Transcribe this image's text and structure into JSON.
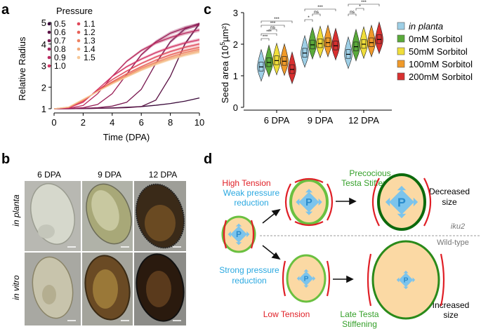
{
  "panels": {
    "a": "a",
    "b": "b",
    "c": "c",
    "d": "d"
  },
  "chart_data": [
    {
      "id": "a",
      "type": "line",
      "title": "",
      "xlabel": "Time (DPA)",
      "ylabel": "Relative Radius",
      "xlim": [
        0,
        10
      ],
      "ylim": [
        1,
        5
      ],
      "xticks": [
        0,
        2,
        4,
        6,
        8,
        10
      ],
      "yticks": [
        1,
        2,
        3,
        4,
        5
      ],
      "legend_title": "Pressure",
      "series": [
        {
          "name": "0.5",
          "color": "#3a0a3a",
          "x": [
            0,
            1,
            2,
            3,
            4,
            5,
            6,
            7,
            8,
            9,
            10
          ],
          "y": [
            1,
            1,
            1.01,
            1.02,
            1.04,
            1.07,
            1.1,
            1.16,
            1.24,
            1.35,
            1.5
          ]
        },
        {
          "name": "0.6",
          "color": "#5a1244",
          "x": [
            0,
            1,
            2,
            3,
            4,
            5,
            6,
            7,
            8,
            9,
            10
          ],
          "y": [
            1,
            1,
            1.01,
            1.02,
            1.03,
            1.05,
            1.1,
            1.4,
            2.5,
            4.0,
            4.95
          ]
        },
        {
          "name": "0.7",
          "color": "#7a1a52",
          "x": [
            0,
            1,
            2,
            3,
            4,
            5,
            6,
            7,
            8,
            9,
            10
          ],
          "y": [
            1,
            1,
            1.02,
            1.05,
            1.12,
            1.3,
            1.9,
            3.1,
            4.1,
            4.7,
            4.95
          ]
        },
        {
          "name": "0.8",
          "color": "#9a2058",
          "x": [
            0,
            1,
            2,
            3,
            4,
            5,
            6,
            7,
            8,
            9,
            10
          ],
          "y": [
            1,
            1.01,
            1.05,
            1.2,
            1.7,
            2.6,
            3.5,
            4.1,
            4.5,
            4.75,
            4.9
          ]
        },
        {
          "name": "0.9",
          "color": "#b82a5e",
          "x": [
            0,
            1,
            2,
            3,
            4,
            5,
            6,
            7,
            8,
            9,
            10
          ],
          "y": [
            1,
            1.02,
            1.15,
            1.7,
            2.5,
            3.2,
            3.7,
            4.05,
            4.3,
            4.5,
            4.65
          ]
        },
        {
          "name": "1.0",
          "color": "#d23464",
          "x": [
            0,
            1,
            2,
            3,
            4,
            5,
            6,
            7,
            8,
            9,
            10
          ],
          "y": [
            1,
            1.04,
            1.3,
            1.9,
            2.5,
            2.95,
            3.3,
            3.6,
            3.85,
            4.05,
            4.2
          ]
        },
        {
          "name": "1.1",
          "color": "#e0485a",
          "x": [
            0,
            1,
            2,
            3,
            4,
            5,
            6,
            7,
            8,
            9,
            10
          ],
          "y": [
            1,
            1.05,
            1.35,
            1.85,
            2.35,
            2.75,
            3.1,
            3.4,
            3.65,
            3.85,
            4.0
          ]
        },
        {
          "name": "1.2",
          "color": "#e8625a",
          "x": [
            0,
            1,
            2,
            3,
            4,
            5,
            6,
            7,
            8,
            9,
            10
          ],
          "y": [
            1,
            1.06,
            1.38,
            1.82,
            2.25,
            2.62,
            2.95,
            3.25,
            3.5,
            3.7,
            3.85
          ]
        },
        {
          "name": "1.3",
          "color": "#ee8262",
          "x": [
            0,
            1,
            2,
            3,
            4,
            5,
            6,
            7,
            8,
            9,
            10
          ],
          "y": [
            1,
            1.07,
            1.4,
            1.8,
            2.2,
            2.55,
            2.88,
            3.15,
            3.4,
            3.6,
            3.75
          ]
        },
        {
          "name": "1.4",
          "color": "#f2a878",
          "x": [
            0,
            1,
            2,
            3,
            4,
            5,
            6,
            7,
            8,
            9,
            10
          ],
          "y": [
            1,
            1.08,
            1.42,
            1.8,
            2.17,
            2.5,
            2.82,
            3.1,
            3.33,
            3.52,
            3.68
          ]
        },
        {
          "name": "1.5",
          "color": "#f6c898",
          "x": [
            0,
            1,
            2,
            3,
            4,
            5,
            6,
            7,
            8,
            9,
            10
          ],
          "y": [
            1,
            1.08,
            1.44,
            1.8,
            2.15,
            2.47,
            2.78,
            3.05,
            3.28,
            3.47,
            3.62
          ]
        }
      ]
    },
    {
      "id": "c",
      "type": "violin",
      "title": "",
      "xlabel": "",
      "ylabel": "Seed area (10^5 µm²)",
      "ylabel_parts": {
        "pre": "Seed area (10",
        "exp": "5",
        "post": "µm²)"
      },
      "ylim": [
        0,
        3
      ],
      "yticks": [
        0,
        1,
        2,
        3
      ],
      "groups": [
        "6 DPA",
        "9 DPA",
        "12 DPA"
      ],
      "series": [
        {
          "name": "in planta",
          "color": "#9ecfe6",
          "medians": [
            1.28,
            1.72,
            1.68
          ]
        },
        {
          "name": "0mM Sorbitol",
          "color": "#5aaa3a",
          "medians": [
            1.42,
            1.98,
            1.92
          ]
        },
        {
          "name": "50mM Sorbitol",
          "color": "#f0de3a",
          "medians": [
            1.48,
            2.02,
            2.0
          ]
        },
        {
          "name": "100mM Sorbitol",
          "color": "#f09a2a",
          "medians": [
            1.46,
            2.05,
            2.05
          ]
        },
        {
          "name": "200mM Sorbitol",
          "color": "#d83030",
          "medians": [
            1.2,
            1.95,
            2.15
          ]
        }
      ],
      "significance": [
        "***",
        "***",
        "ns",
        "***",
        "***",
        "*",
        "ns",
        "***",
        "ns",
        "*",
        "***"
      ]
    }
  ],
  "panel_b": {
    "columns": [
      "6 DPA",
      "9 DPA",
      "12 DPA"
    ],
    "rows": [
      "in planta",
      "in vitro"
    ]
  },
  "panel_d": {
    "labels": {
      "high_tension": "High Tension",
      "precocious": "Precocious",
      "testa_stiffening": "Testa Stiffening",
      "decreased": "Decreased",
      "size1": "size",
      "weak1": "Weak pressure",
      "weak2": "reduction",
      "iku2": "iku2",
      "wildtype": "Wild-type",
      "strong1": "Strong pressure",
      "strong2": "reduction",
      "low_tension": "Low Tension",
      "late1": "Late Testa",
      "late2": "Stiffening",
      "increased": "Increased",
      "size2": "size",
      "p": "P"
    }
  }
}
